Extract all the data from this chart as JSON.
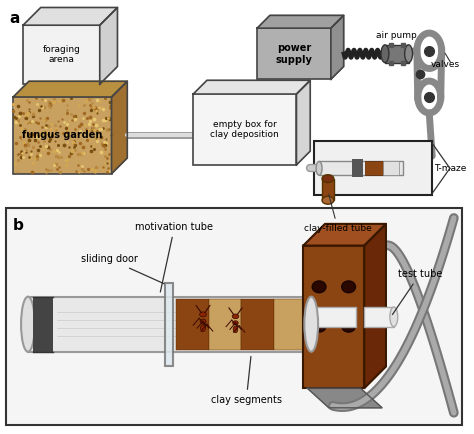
{
  "bg_color": "#ffffff",
  "panel_a_label": "a",
  "panel_b_label": "b",
  "foraging_arena_label": "foraging\narena",
  "fungus_garden_label": "fungus garden",
  "power_supply_label": "power\nsupply",
  "empty_box_label": "empty box for\nclay deposition",
  "clay_tube_label": "clay-filled tube",
  "air_pump_label": "air pump",
  "valves_label": "valves",
  "tmaze_label": "T-maze",
  "motivation_tube_label": "motivation tube",
  "sliding_door_label": "sliding door",
  "test_tube_label": "test tube",
  "clay_segments_label": "clay segments",
  "hose_color": "#888888",
  "brown_color": "#8B4513",
  "light_gray": "#e8e8e8",
  "med_gray": "#b0b0b0",
  "dark_gray": "#444444"
}
